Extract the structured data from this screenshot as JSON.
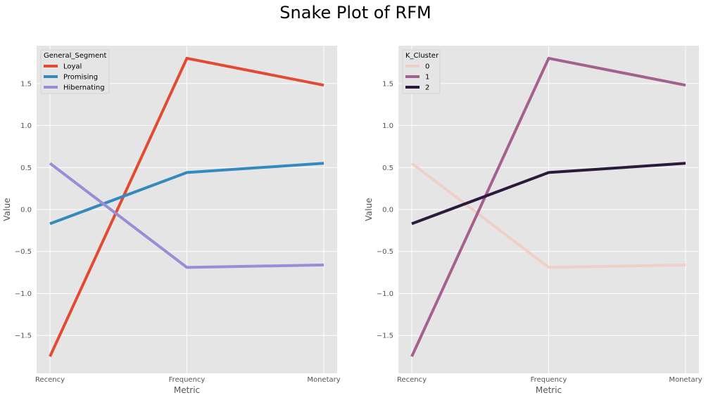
{
  "figure": {
    "title": "Snake Plot of RFM",
    "background": "#ffffff",
    "axes_background": "#e5e5e5",
    "grid_color": "#ffffff"
  },
  "chart_data": [
    {
      "type": "line",
      "categories": [
        "Recency",
        "Frequency",
        "Monetary"
      ],
      "xlabel": "Metric",
      "ylabel": "Value",
      "ylim": [
        -1.95,
        1.95
      ],
      "yticks": [
        -1.5,
        -1.0,
        -0.5,
        0.0,
        0.5,
        1.0,
        1.5
      ],
      "ytick_labels": [
        "−1.5",
        "−1.0",
        "−0.5",
        "0.0",
        "0.5",
        "1.0",
        "1.5"
      ],
      "grid": true,
      "legend": {
        "title": "General_Segment",
        "placement": "top-left"
      },
      "series": [
        {
          "name": "Loyal",
          "color": "#E24A33",
          "values": [
            -1.75,
            1.8,
            1.48
          ]
        },
        {
          "name": "Promising",
          "color": "#348ABD",
          "values": [
            -0.17,
            0.44,
            0.55
          ]
        },
        {
          "name": "Hibernating",
          "color": "#988ED5",
          "values": [
            0.55,
            -0.69,
            -0.66
          ]
        }
      ]
    },
    {
      "type": "line",
      "categories": [
        "Recency",
        "Frequency",
        "Monetary"
      ],
      "xlabel": "Metric",
      "ylabel": "Value",
      "ylim": [
        -1.95,
        1.95
      ],
      "yticks": [
        -1.5,
        -1.0,
        -0.5,
        0.0,
        0.5,
        1.0,
        1.5
      ],
      "ytick_labels": [
        "−1.5",
        "−1.0",
        "−0.5",
        "0.0",
        "0.5",
        "1.0",
        "1.5"
      ],
      "grid": true,
      "legend": {
        "title": "K_Cluster",
        "placement": "top-left"
      },
      "series": [
        {
          "name": "0",
          "color": "#efd0c6",
          "values": [
            0.55,
            -0.69,
            -0.66
          ]
        },
        {
          "name": "1",
          "color": "#a4618e",
          "values": [
            -1.75,
            1.8,
            1.48
          ]
        },
        {
          "name": "2",
          "color": "#2a1b3d",
          "values": [
            -0.17,
            0.44,
            0.55
          ]
        }
      ]
    }
  ]
}
